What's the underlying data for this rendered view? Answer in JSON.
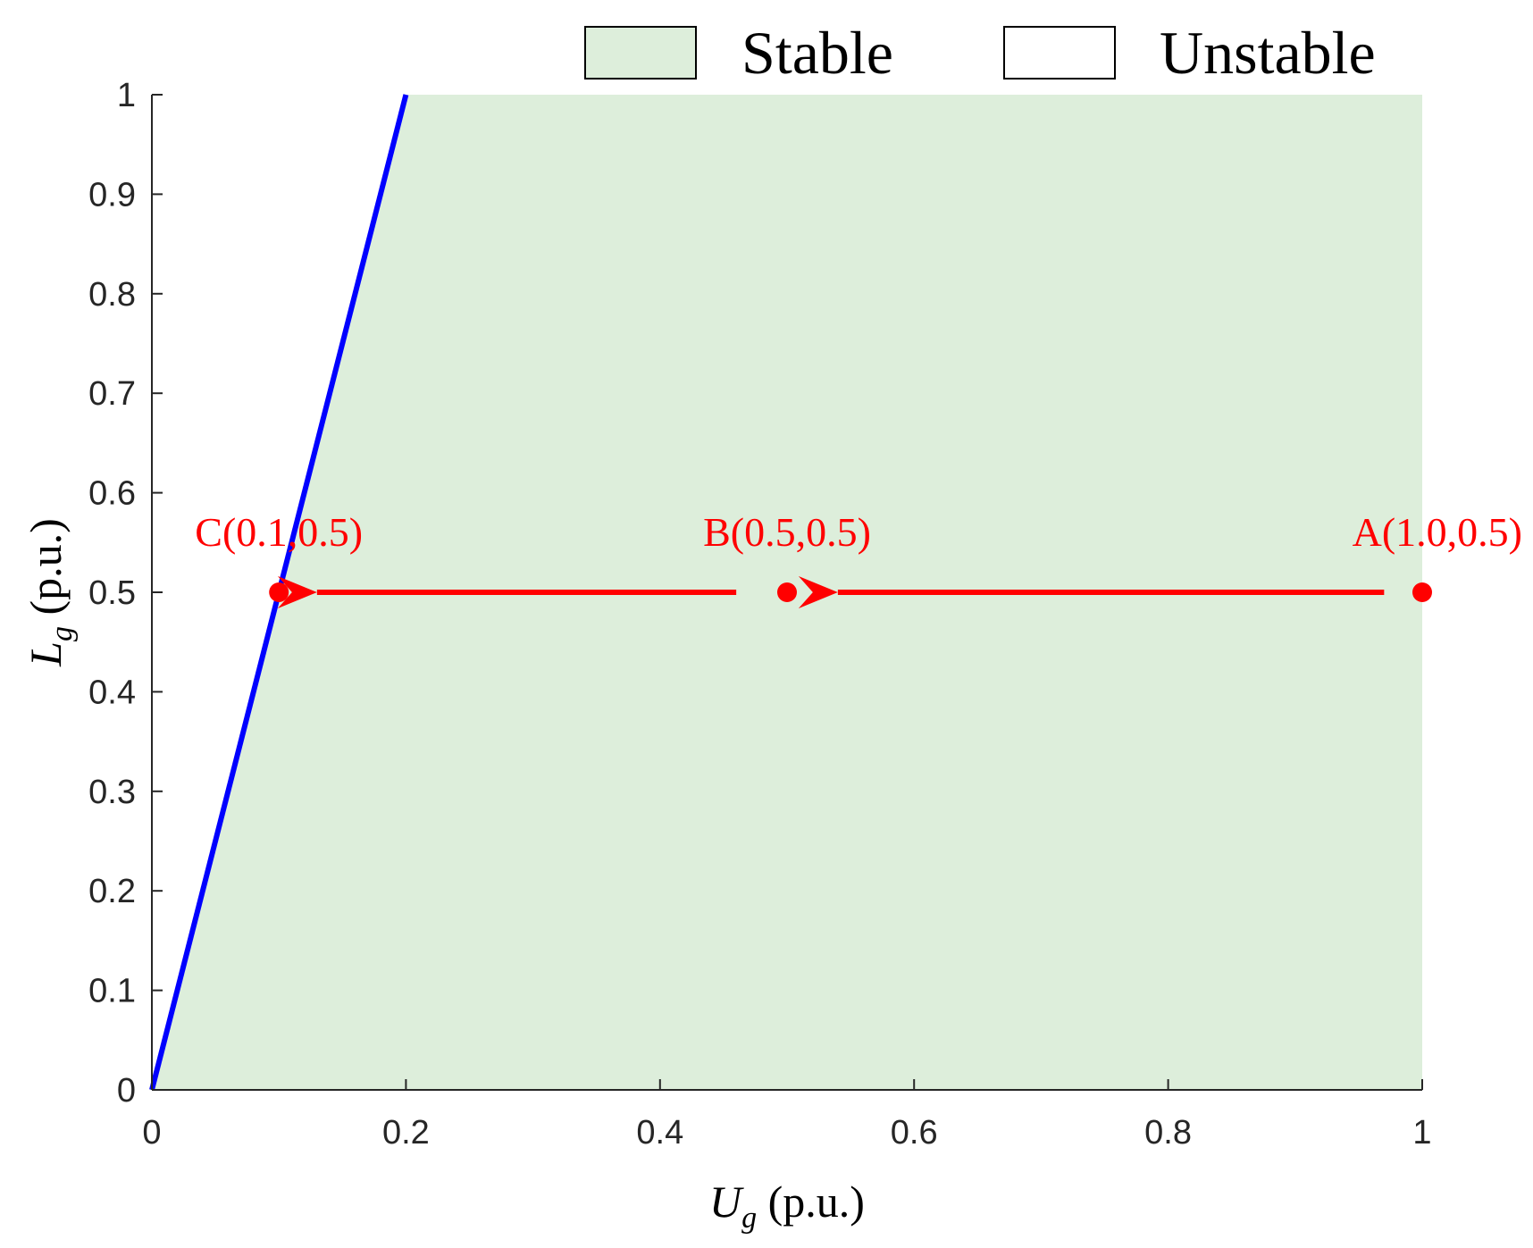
{
  "chart_data": {
    "type": "area",
    "xlabel": {
      "main": "U",
      "sub": "g",
      "unit": " (p.u.)"
    },
    "ylabel": {
      "main": "L",
      "sub": "g",
      "unit": " (p.u.)"
    },
    "xlim": [
      0,
      1
    ],
    "ylim": [
      0,
      1
    ],
    "xticks": [
      0,
      0.2,
      0.4,
      0.6,
      0.8,
      1
    ],
    "yticks": [
      0,
      0.1,
      0.2,
      0.3,
      0.4,
      0.5,
      0.6,
      0.7,
      0.8,
      0.9,
      1
    ],
    "xtick_labels": [
      "0",
      "0.2",
      "0.4",
      "0.6",
      "0.8",
      "1"
    ],
    "ytick_labels": [
      "0",
      "0.1",
      "0.2",
      "0.3",
      "0.4",
      "0.5",
      "0.6",
      "0.7",
      "0.8",
      "0.9",
      "1"
    ],
    "grid": false,
    "legend": {
      "placement": "top",
      "entries": [
        {
          "label": "Stable",
          "color": "#ddeedb"
        },
        {
          "label": "Unstable",
          "color": "#ffffff"
        }
      ]
    },
    "boundary": {
      "x": [
        0,
        0.2
      ],
      "y": [
        0,
        1
      ],
      "color": "#0000ff"
    },
    "stable_region": {
      "x": [
        0,
        0.2,
        1,
        1
      ],
      "y": [
        0,
        1,
        1,
        0
      ],
      "color": "#ddeedb"
    },
    "points": [
      {
        "label": "A(1.0,0.5)",
        "x": 1.0,
        "y": 0.5
      },
      {
        "label": "B(0.5,0.5)",
        "x": 0.5,
        "y": 0.5
      },
      {
        "label": "C(0.1,0.5)",
        "x": 0.1,
        "y": 0.5
      }
    ],
    "arrows": [
      {
        "from": [
          0.97,
          0.5
        ],
        "to": [
          0.54,
          0.5
        ]
      },
      {
        "from": [
          0.46,
          0.5
        ],
        "to": [
          0.13,
          0.5
        ]
      }
    ],
    "point_color": "#ff0000"
  }
}
